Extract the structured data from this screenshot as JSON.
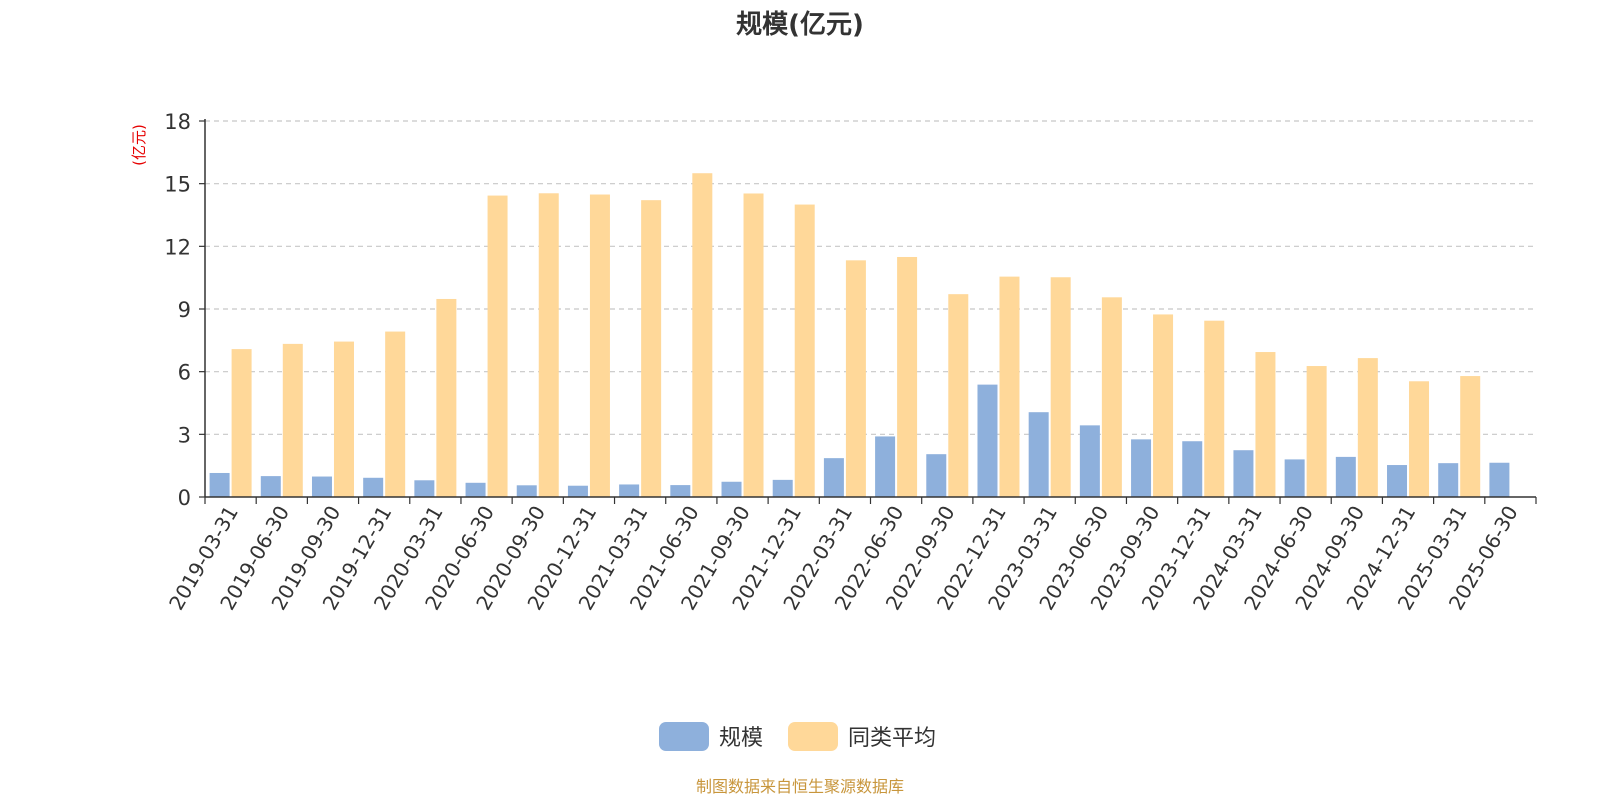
{
  "chart_data": {
    "type": "bar",
    "title": "规模(亿元)",
    "ylabel": "(亿元)",
    "ylim": [
      0,
      18
    ],
    "yticks": [
      0,
      3,
      6,
      9,
      12,
      15,
      18
    ],
    "grid": "horizontal dashed",
    "legend_position": "bottom-center",
    "categories": [
      "2019-03-31",
      "2019-06-30",
      "2019-09-30",
      "2019-12-31",
      "2020-03-31",
      "2020-06-30",
      "2020-09-30",
      "2020-12-31",
      "2021-03-31",
      "2021-06-30",
      "2021-09-30",
      "2021-12-31",
      "2022-03-31",
      "2022-06-30",
      "2022-09-30",
      "2022-12-31",
      "2023-03-31",
      "2023-06-30",
      "2023-09-30",
      "2023-12-31",
      "2024-03-31",
      "2024-06-30",
      "2024-09-30",
      "2024-12-31",
      "2025-03-31",
      "2025-06-30"
    ],
    "series": [
      {
        "name": "规模",
        "color": "#8eb0dc",
        "values": [
          1.15,
          1.0,
          0.98,
          0.92,
          0.8,
          0.68,
          0.56,
          0.54,
          0.6,
          0.57,
          0.73,
          0.82,
          1.86,
          2.9,
          2.05,
          5.38,
          4.06,
          3.43,
          2.76,
          2.67,
          2.24,
          1.8,
          1.92,
          1.53,
          1.62,
          1.64
        ]
      },
      {
        "name": "同类平均",
        "color": "#ffd899",
        "values": [
          7.08,
          7.33,
          7.44,
          7.92,
          9.48,
          14.43,
          14.54,
          14.48,
          14.21,
          15.5,
          14.53,
          14.0,
          11.33,
          11.49,
          9.71,
          10.55,
          10.52,
          9.56,
          8.74,
          8.44,
          6.94,
          6.27,
          6.65,
          5.54,
          5.79,
          null
        ]
      }
    ]
  },
  "legend": {
    "items": [
      "规模",
      "同类平均"
    ]
  },
  "source_note": "制图数据来自恒生聚源数据库"
}
